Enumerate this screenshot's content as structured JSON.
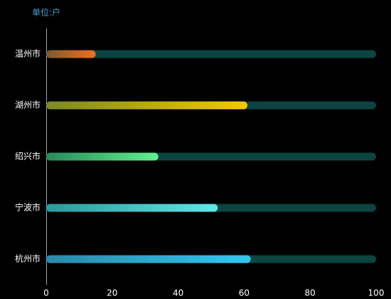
{
  "chart_data": {
    "type": "hbar",
    "unit_label": "单位:户",
    "categories": [
      "温州市",
      "湖州市",
      "绍兴市",
      "宁波市",
      "杭州市"
    ],
    "values": [
      15,
      61,
      34,
      52,
      62
    ],
    "gradients": [
      [
        "#7a5a30",
        "#f07020"
      ],
      [
        "#7a8a20",
        "#f5c800"
      ],
      [
        "#2a8a5a",
        "#60f090"
      ],
      [
        "#2a9a9a",
        "#60e8e8"
      ],
      [
        "#2a8aaa",
        "#30c8f0"
      ]
    ],
    "track_color": "#0b4440",
    "xlim": [
      0,
      100
    ],
    "xticks": [
      0,
      20,
      40,
      60,
      80,
      100
    ],
    "grid": false
  }
}
